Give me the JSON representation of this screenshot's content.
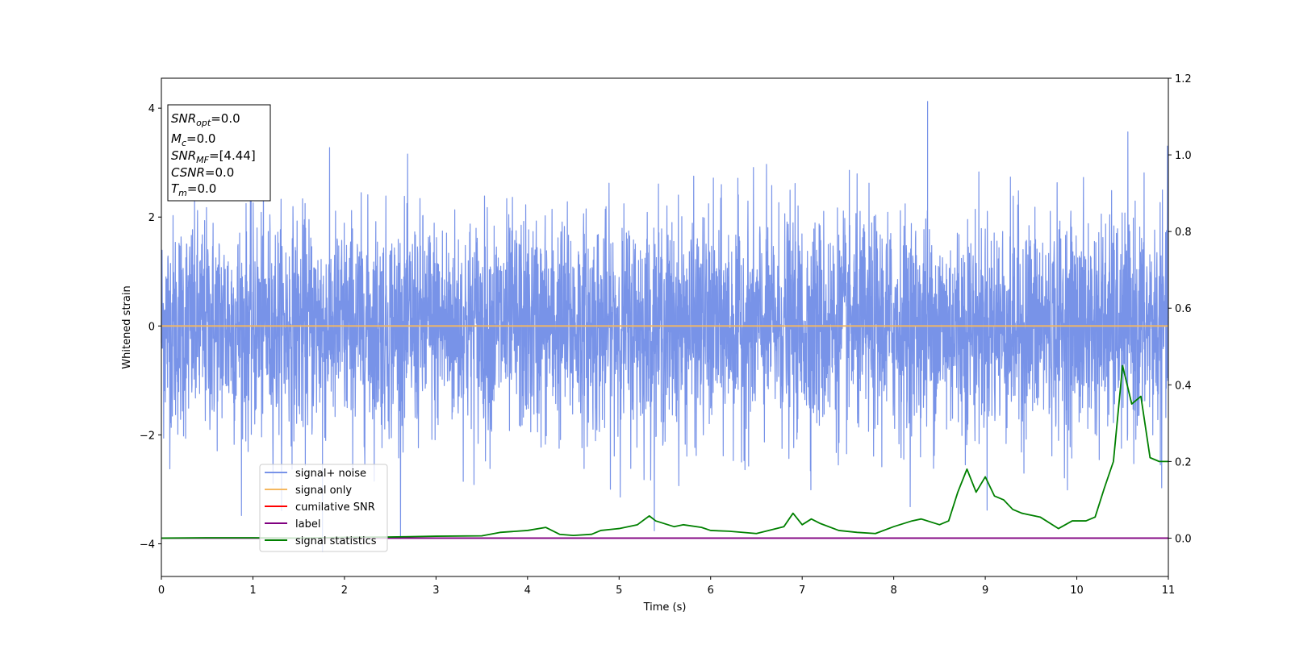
{
  "chart_data": {
    "type": "line",
    "title": "",
    "xlabel": "Time (s)",
    "ylabel": "Whitened strain",
    "y2label": "",
    "xlim": [
      0,
      11
    ],
    "ylim": [
      -4.6,
      4.55
    ],
    "y2lim": [
      -0.1,
      1.2
    ],
    "xticks": [
      "0",
      "1",
      "2",
      "3",
      "4",
      "5",
      "6",
      "7",
      "8",
      "9",
      "10",
      "11"
    ],
    "yticks": [
      "4",
      "2",
      "0",
      "−2",
      "−4"
    ],
    "y2ticks": [
      "1.2",
      "1.0",
      "0.8",
      "0.6",
      "0.4",
      "0.2",
      "0.0"
    ],
    "grid": false,
    "legend_position": "lower-left",
    "annotation": {
      "lines": [
        {
          "sym": "SNR",
          "sub": "opt",
          "value": "=0.0"
        },
        {
          "sym": "M",
          "sub": "c",
          "value": "=0.0"
        },
        {
          "sym": "SNR",
          "sub": "MF",
          "value": "=[4.44]"
        },
        {
          "sym": "CSNR",
          "sub": "",
          "value": "=0.0"
        },
        {
          "sym": "T",
          "sub": "m",
          "value": "=0.0"
        }
      ]
    },
    "series": [
      {
        "name": "signal+ noise",
        "color": "#7893e8",
        "axis": "left",
        "style": "noise",
        "amplitude_std": 1.0,
        "peak_max": 4.13,
        "peak_min": -4.15
      },
      {
        "name": "signal only",
        "color": "#f5b860",
        "axis": "left",
        "x": [
          0,
          11
        ],
        "y": [
          0,
          0
        ]
      },
      {
        "name": "cumilative SNR",
        "color": "#ff0000",
        "axis": "right",
        "x": [],
        "y": []
      },
      {
        "name": "label",
        "color": "#800080",
        "axis": "right",
        "x": [
          0,
          11
        ],
        "y": [
          0,
          0
        ]
      },
      {
        "name": "signal statistics",
        "color": "#008000",
        "axis": "right",
        "x": [
          0,
          0.5,
          1,
          1.5,
          2,
          2.5,
          3,
          3.5,
          3.7,
          4,
          4.2,
          4.35,
          4.5,
          4.7,
          4.8,
          5,
          5.2,
          5.33,
          5.4,
          5.6,
          5.7,
          5.9,
          6,
          6.2,
          6.5,
          6.8,
          6.9,
          7,
          7.1,
          7.2,
          7.4,
          7.6,
          7.8,
          8,
          8.2,
          8.3,
          8.5,
          8.6,
          8.7,
          8.8,
          8.9,
          9,
          9.1,
          9.2,
          9.3,
          9.4,
          9.6,
          9.8,
          9.95,
          10.1,
          10.2,
          10.3,
          10.4,
          10.5,
          10.6,
          10.7,
          10.8,
          10.9,
          11
        ],
        "y": [
          0,
          0.001,
          0.001,
          0.0,
          0.002,
          0.003,
          0.005,
          0.006,
          0.015,
          0.02,
          0.028,
          0.01,
          0.007,
          0.01,
          0.02,
          0.025,
          0.035,
          0.058,
          0.045,
          0.03,
          0.035,
          0.028,
          0.02,
          0.018,
          0.012,
          0.03,
          0.065,
          0.035,
          0.05,
          0.038,
          0.02,
          0.015,
          0.012,
          0.03,
          0.045,
          0.05,
          0.035,
          0.045,
          0.12,
          0.18,
          0.12,
          0.16,
          0.11,
          0.1,
          0.075,
          0.065,
          0.055,
          0.025,
          0.045,
          0.045,
          0.055,
          0.13,
          0.2,
          0.45,
          0.35,
          0.37,
          0.21,
          0.2,
          0.2
        ]
      }
    ]
  }
}
